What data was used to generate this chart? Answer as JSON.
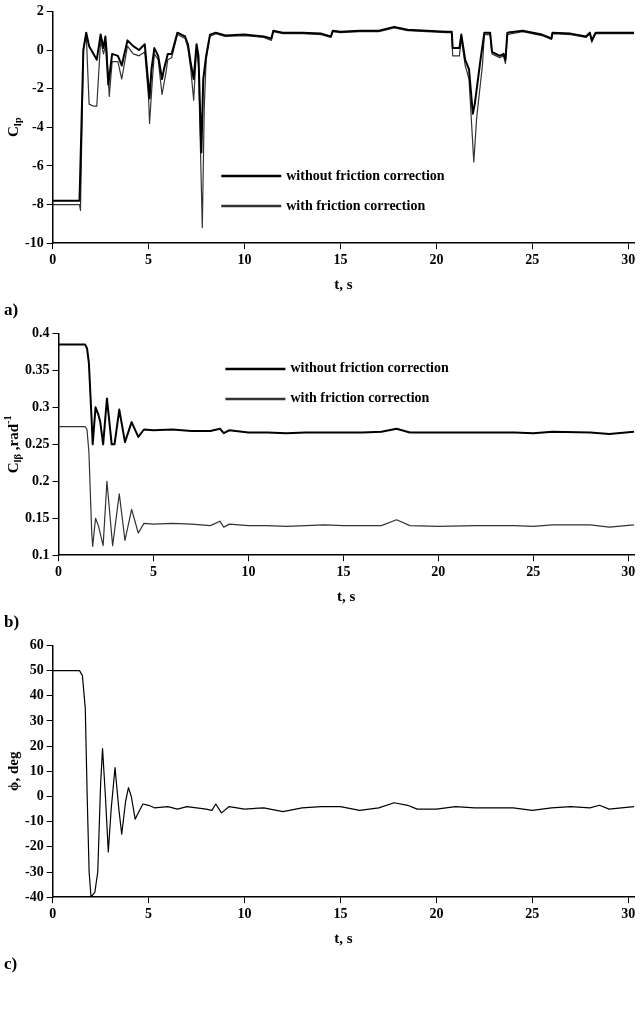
{
  "chart_data": [
    {
      "type": "line",
      "xlabel": "t, s",
      "ylabel": "C$_{lp}$",
      "xlim": [
        0,
        30.3
      ],
      "ylim": [
        -10,
        2
      ],
      "xticks": [
        0,
        5,
        10,
        15,
        20,
        25,
        30
      ],
      "yticks": [
        -10,
        -8,
        -6,
        -4,
        -2,
        0,
        2
      ],
      "grid": false,
      "legend": "bottom",
      "marker": "none",
      "annotations": [
        "a)"
      ],
      "series": [
        {
          "name": "without friction correction",
          "color": "#000000",
          "x": [
            0,
            1.4,
            1.6,
            1.75,
            1.9,
            2.3,
            2.5,
            2.65,
            2.75,
            2.9,
            3.1,
            3.4,
            3.6,
            3.9,
            4.2,
            4.5,
            4.8,
            5.0,
            5.05,
            5.15,
            5.3,
            5.5,
            5.7,
            5.8,
            6.0,
            6.2,
            6.5,
            6.9,
            7.05,
            7.2,
            7.35,
            7.5,
            7.6,
            7.75,
            7.85,
            8.0,
            8.2,
            8.5,
            9,
            10,
            11,
            11.4,
            11.5,
            12,
            13,
            14,
            14.5,
            14.6,
            15,
            16,
            17,
            17.8,
            18.5,
            19.5,
            20.5,
            20.8,
            20.85,
            21.2,
            21.3,
            21.5,
            21.7,
            21.9,
            22.0,
            22.3,
            22.5,
            22.8,
            22.9,
            23.3,
            23.5,
            23.6,
            23.7,
            24.5,
            25.5,
            26.0,
            26.05,
            27,
            27.8,
            28.0,
            28.1,
            28.3,
            29,
            30.3
          ],
          "values": [
            -7.8,
            -7.8,
            0.0,
            0.9,
            0.2,
            -0.5,
            0.8,
            0.1,
            0.7,
            -1.8,
            -0.2,
            -0.3,
            -0.8,
            0.5,
            0.2,
            0,
            0.3,
            -1.9,
            -2.5,
            -1.0,
            0.1,
            -0.3,
            -1.5,
            -1.0,
            -0.2,
            -0.2,
            0.9,
            0.7,
            0.3,
            -0.7,
            -1.5,
            0.3,
            -0.3,
            -5.3,
            -1.5,
            -0.3,
            0.8,
            0.9,
            0.75,
            0.8,
            0.7,
            0.6,
            1.0,
            0.9,
            0.9,
            0.85,
            0.7,
            1.0,
            0.95,
            1.0,
            1.0,
            1.2,
            1.05,
            1.0,
            0.95,
            0.95,
            0.1,
            0.1,
            0.8,
            -0.5,
            -1.0,
            -3.3,
            -2.8,
            -0.5,
            0.9,
            0.9,
            -0.1,
            -0.3,
            -0.2,
            -0.5,
            0.9,
            1.0,
            0.8,
            0.6,
            0.9,
            0.85,
            0.7,
            0.9,
            0.5,
            0.9,
            0.9,
            0.9
          ]
        },
        {
          "name": "with friction correction",
          "color": "#333333",
          "x": [
            0,
            1.4,
            1.45,
            1.6,
            1.75,
            1.9,
            2.1,
            2.3,
            2.5,
            2.65,
            2.8,
            2.95,
            3.1,
            3.4,
            3.6,
            3.9,
            4.2,
            4.5,
            4.8,
            5.0,
            5.05,
            5.2,
            5.3,
            5.5,
            5.7,
            5.9,
            6.0,
            6.2,
            6.5,
            6.9,
            7.05,
            7.2,
            7.35,
            7.5,
            7.6,
            7.8,
            7.9,
            8.0,
            8.2,
            8.5,
            9,
            10,
            11,
            11.4,
            11.5,
            12,
            13,
            14,
            14.5,
            14.6,
            15,
            16,
            17,
            17.8,
            18.5,
            19.5,
            20.5,
            20.8,
            20.85,
            21.2,
            21.3,
            21.5,
            21.7,
            21.95,
            22.1,
            22.4,
            22.5,
            22.8,
            22.9,
            23.3,
            23.5,
            23.6,
            23.7,
            24.5,
            25.5,
            26.0,
            26.05,
            27,
            27.8,
            28.0,
            28.1,
            28.3,
            29,
            30.3
          ],
          "values": [
            -8.0,
            -8.0,
            -8.3,
            0.0,
            0.8,
            -2.8,
            -2.9,
            -2.9,
            0.5,
            -0.2,
            0.4,
            -2.4,
            -0.6,
            -0.6,
            -1.5,
            0.2,
            -0.2,
            -0.3,
            -0.1,
            -2.5,
            -3.8,
            -1.5,
            -0.2,
            -0.5,
            -2.3,
            -1.2,
            -0.5,
            -0.4,
            0.8,
            0.6,
            0.1,
            -1.0,
            -2.6,
            0.1,
            -0.8,
            -9.2,
            -3,
            -0.5,
            0.7,
            0.85,
            0.7,
            0.75,
            0.65,
            0.5,
            0.95,
            0.85,
            0.85,
            0.8,
            0.65,
            0.95,
            0.9,
            0.95,
            0.95,
            1.15,
            1.0,
            0.95,
            0.9,
            0.9,
            -0.3,
            -0.3,
            0.6,
            -0.8,
            -1.5,
            -5.8,
            -3.5,
            -0.8,
            0.8,
            0.8,
            -0.2,
            -0.4,
            -0.3,
            -0.7,
            0.8,
            0.95,
            0.75,
            0.55,
            0.85,
            0.8,
            0.65,
            0.85,
            0.4,
            0.85,
            0.85,
            0.85
          ]
        }
      ]
    },
    {
      "type": "line",
      "xlabel": "t, s",
      "ylabel": "C$_{lβ}$ ,rad$^{-1}$",
      "xlim": [
        0,
        30.3
      ],
      "ylim": [
        0.1,
        0.4
      ],
      "xticks": [
        0,
        5,
        10,
        15,
        20,
        25,
        30
      ],
      "yticks": [
        0.1,
        0.15,
        0.2,
        0.25,
        0.3,
        0.35,
        0.4
      ],
      "grid": false,
      "legend": "top",
      "marker": "none",
      "annotations": [
        "b)"
      ],
      "series": [
        {
          "name": "without friction correction",
          "color": "#000000",
          "x": [
            0,
            1.4,
            1.5,
            1.6,
            1.75,
            1.8,
            1.95,
            2.1,
            2.2,
            2.35,
            2.55,
            2.8,
            2.95,
            3.2,
            3.5,
            3.85,
            4.2,
            4.5,
            5,
            6,
            7,
            8,
            8.5,
            8.7,
            9,
            10,
            11,
            12,
            13,
            14,
            15,
            16,
            17,
            17.8,
            18.5,
            20,
            22,
            24,
            25,
            26,
            28,
            29,
            30.3
          ],
          "values": [
            0.385,
            0.385,
            0.38,
            0.36,
            0.28,
            0.25,
            0.3,
            0.29,
            0.28,
            0.25,
            0.312,
            0.25,
            0.25,
            0.297,
            0.253,
            0.28,
            0.26,
            0.27,
            0.269,
            0.27,
            0.268,
            0.268,
            0.271,
            0.265,
            0.269,
            0.266,
            0.266,
            0.265,
            0.266,
            0.266,
            0.266,
            0.266,
            0.267,
            0.271,
            0.266,
            0.266,
            0.266,
            0.266,
            0.265,
            0.267,
            0.266,
            0.264,
            0.267
          ]
        },
        {
          "name": "with friction correction",
          "color": "#333333",
          "x": [
            0,
            1.4,
            1.5,
            1.6,
            1.75,
            1.8,
            1.95,
            2.1,
            2.35,
            2.55,
            2.85,
            3.2,
            3.5,
            3.85,
            4.2,
            4.5,
            5,
            6,
            7,
            8,
            8.5,
            8.7,
            9,
            10,
            11,
            12,
            13,
            14,
            15,
            16,
            17,
            17.8,
            18.5,
            20,
            22,
            24,
            25,
            26,
            28,
            29,
            30.3
          ],
          "values": [
            0.274,
            0.274,
            0.27,
            0.24,
            0.13,
            0.112,
            0.15,
            0.14,
            0.113,
            0.2,
            0.113,
            0.183,
            0.12,
            0.162,
            0.13,
            0.143,
            0.142,
            0.143,
            0.142,
            0.14,
            0.146,
            0.138,
            0.142,
            0.14,
            0.14,
            0.139,
            0.14,
            0.141,
            0.14,
            0.14,
            0.14,
            0.148,
            0.14,
            0.139,
            0.14,
            0.14,
            0.139,
            0.141,
            0.141,
            0.138,
            0.141
          ]
        }
      ]
    },
    {
      "type": "line",
      "xlabel": "t, s",
      "ylabel": "ϕ, deg",
      "xlim": [
        0,
        30.3
      ],
      "ylim": [
        -40,
        60
      ],
      "xticks": [
        0,
        5,
        10,
        15,
        20,
        25,
        30
      ],
      "yticks": [
        -40,
        -30,
        -20,
        -10,
        0,
        10,
        20,
        30,
        40,
        50,
        60
      ],
      "grid": false,
      "marker": "none",
      "annotations": [
        "c)"
      ],
      "series": [
        {
          "color": "#000000",
          "x": [
            0,
            1.4,
            1.55,
            1.7,
            1.8,
            1.9,
            2.0,
            2.2,
            2.35,
            2.5,
            2.6,
            2.75,
            2.9,
            3.05,
            3.25,
            3.45,
            3.6,
            3.8,
            3.95,
            4.1,
            4.3,
            4.5,
            4.7,
            5,
            5.3,
            6,
            6.5,
            7,
            8,
            8.3,
            8.5,
            8.8,
            9.2,
            10,
            11,
            12,
            13,
            14,
            15,
            16,
            17,
            17.8,
            18.5,
            19,
            20,
            21,
            22,
            23,
            24,
            25,
            26,
            27,
            28,
            28.5,
            29,
            30.3
          ],
          "values": [
            50,
            50,
            48,
            35,
            0,
            -30,
            -40,
            -38,
            -30,
            5,
            19,
            0,
            -22,
            -5,
            11.5,
            -5,
            -15,
            -2,
            3.5,
            0,
            -9,
            -6,
            -3,
            -3.5,
            -4.5,
            -4,
            -5,
            -4,
            -5,
            -5.5,
            -3,
            -6.5,
            -4,
            -5,
            -4.5,
            -6,
            -4.5,
            -4,
            -4,
            -5.5,
            -4.5,
            -2.5,
            -3.5,
            -5,
            -5,
            -4,
            -4.5,
            -4.5,
            -4.5,
            -5.5,
            -4.5,
            -4,
            -4.5,
            -3.5,
            -5,
            -4
          ]
        }
      ]
    }
  ]
}
